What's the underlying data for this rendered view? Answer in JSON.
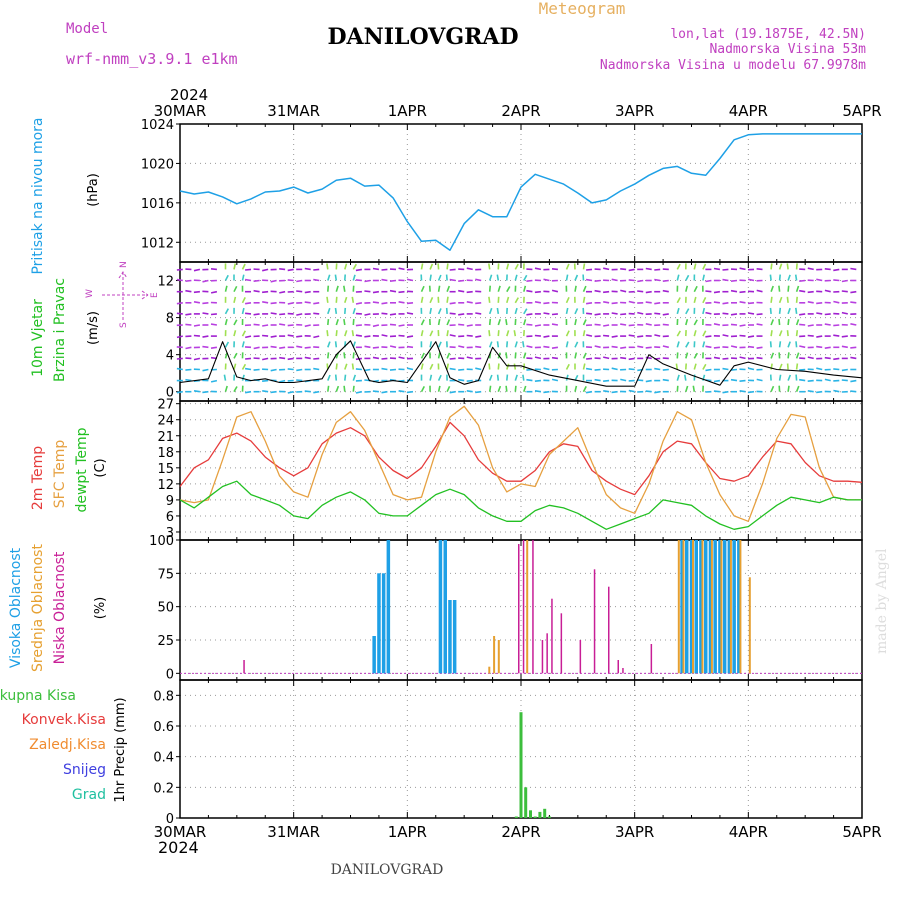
{
  "header": {
    "model_label": "Model",
    "model_name": "wrf-nmm_v3.9.1 e1km",
    "location_title": "DANILOVGRAD",
    "product": "Meteogram",
    "lonlat": "lon,lat (19.1875E, 42.5N)",
    "elevation": "Nadmorska Visina 53m",
    "model_elevation": "Nadmorska Visina u modelu 67.9978m",
    "footer_title": "DANILOVGRAD",
    "credit": "made by Angel",
    "year_top": "2024",
    "year_bottom": "2024"
  },
  "colors": {
    "pressure": "#1ea0e6",
    "temp2m": "#e63c3c",
    "sfc_temp": "#e6a040",
    "dewpoint": "#22c022",
    "high_cloud": "#1ea0e6",
    "mid_cloud": "#e6a030",
    "low_cloud": "#c81e96",
    "total_precip": "#3cbe3c",
    "conv_precip": "#e63c3c",
    "freezing": "#f08c30",
    "snow": "#4040e0",
    "grad": "#20c0a0",
    "wind_label": "#22c022",
    "axis_purple": "#c040c0"
  },
  "chart_data": [
    {
      "type": "line",
      "name_label": "Pritisak na nivou mora",
      "ylabel": "(hPa)",
      "ylim": [
        1010,
        1024
      ],
      "yticks": [
        1012,
        1016,
        1020,
        1024
      ],
      "x_days": [
        "30MAR",
        "31MAR",
        "1APR",
        "2APR",
        "3APR",
        "4APR",
        "5APR"
      ],
      "x_range_hours": [
        0,
        144
      ],
      "series": [
        {
          "name": "pressure",
          "x": [
            0,
            3,
            6,
            9,
            12,
            15,
            18,
            21,
            24,
            27,
            30,
            33,
            36,
            39,
            42,
            45,
            48,
            51,
            54,
            57,
            60,
            63,
            66,
            69,
            72,
            75,
            78,
            81,
            84,
            87,
            90,
            93,
            96,
            99,
            102,
            105,
            108,
            111,
            114,
            117,
            120,
            123,
            126,
            129,
            132,
            135,
            138,
            141,
            144
          ],
          "values": [
            1017.2,
            1016.9,
            1017.1,
            1016.6,
            1015.9,
            1016.4,
            1017.1,
            1017.2,
            1017.6,
            1017.0,
            1017.4,
            1018.3,
            1018.5,
            1017.7,
            1017.8,
            1016.5,
            1014.1,
            1012.1,
            1012.2,
            1011.2,
            1013.9,
            1015.3,
            1014.6,
            1014.6,
            1017.6,
            1018.9,
            1018.4,
            1017.9,
            1017.0,
            1016.0,
            1016.3,
            1017.2,
            1017.9,
            1018.8,
            1019.5,
            1019.7,
            1019.0,
            1018.8,
            1020.5,
            1022.4,
            1022.9,
            1023.0,
            1023.0,
            1023.0,
            1023.0,
            1023.0,
            1023.0,
            1023.0,
            1023.0
          ]
        }
      ]
    },
    {
      "type": "line",
      "name_label_1": "10m Vjetar",
      "name_label_2": "Brzina i Pravac",
      "ylabel": "(m/s)",
      "ylim": [
        -1,
        14
      ],
      "yticks": [
        0,
        4,
        8,
        12
      ],
      "compass": {
        "n": "N",
        "w": "W",
        "e": "E",
        "s": "S"
      },
      "series": [
        {
          "name": "wind_speed",
          "x": [
            0,
            6,
            9,
            12,
            15,
            18,
            21,
            24,
            30,
            33,
            36,
            40,
            42,
            45,
            48,
            54,
            57,
            60,
            63,
            66,
            69,
            72,
            78,
            84,
            90,
            96,
            99,
            102,
            108,
            114,
            117,
            120,
            126,
            132,
            138,
            144
          ],
          "values": [
            1.0,
            1.4,
            5.4,
            1.6,
            1.2,
            1.4,
            1.0,
            1.0,
            1.4,
            4.0,
            5.5,
            1.2,
            1.0,
            1.2,
            1.0,
            5.4,
            1.5,
            0.8,
            1.2,
            4.8,
            2.8,
            2.8,
            1.8,
            1.2,
            0.6,
            0.6,
            4.0,
            3.0,
            1.8,
            0.7,
            2.8,
            3.2,
            2.4,
            2.2,
            1.8,
            1.5
          ]
        }
      ]
    },
    {
      "type": "line",
      "name_label_1": "2m Temp",
      "name_label_2": "SFC Temp",
      "name_label_3": "dewpt Temp",
      "ylabel": "(C)",
      "ylim": [
        1.5,
        27.5
      ],
      "yticks": [
        3,
        6,
        9,
        12,
        15,
        18,
        21,
        24,
        27
      ],
      "series": [
        {
          "name": "temp2m",
          "x": [
            0,
            3,
            6,
            9,
            12,
            15,
            18,
            21,
            24,
            27,
            30,
            33,
            36,
            39,
            42,
            45,
            48,
            51,
            54,
            57,
            60,
            63,
            66,
            69,
            72,
            75,
            78,
            81,
            84,
            87,
            90,
            93,
            96,
            99,
            102,
            105,
            108,
            111,
            114,
            117,
            120,
            123,
            126,
            129,
            132,
            135,
            138,
            141,
            144
          ],
          "values": [
            11.5,
            15.0,
            16.5,
            20.5,
            21.5,
            20.0,
            17.0,
            15.0,
            13.5,
            15.0,
            19.5,
            21.5,
            22.5,
            21.0,
            17.0,
            14.5,
            13.0,
            15.0,
            19.0,
            23.5,
            21.0,
            16.5,
            14.0,
            12.5,
            12.5,
            14.5,
            18.0,
            19.5,
            19.0,
            14.5,
            12.5,
            11.0,
            10.0,
            13.5,
            18.0,
            20.0,
            19.5,
            16.0,
            13.0,
            12.5,
            13.5,
            17.0,
            20.0,
            19.5,
            16.0,
            13.5,
            12.5,
            12.5,
            12.3
          ]
        },
        {
          "name": "sfc_temp",
          "x": [
            0,
            3,
            6,
            9,
            12,
            15,
            18,
            21,
            24,
            27,
            30,
            33,
            36,
            39,
            42,
            45,
            48,
            51,
            54,
            57,
            60,
            63,
            66,
            69,
            72,
            75,
            78,
            81,
            84,
            87,
            90,
            93,
            96,
            99,
            102,
            105,
            108,
            111,
            114,
            117,
            120,
            123,
            126,
            129,
            132,
            135,
            138,
            141,
            144
          ],
          "values": [
            9.0,
            8.5,
            9.0,
            16.5,
            24.5,
            25.5,
            20.0,
            13.5,
            10.5,
            9.5,
            17.5,
            23.5,
            25.5,
            22.0,
            16.0,
            10.0,
            9.0,
            9.5,
            18.0,
            24.5,
            26.5,
            23.0,
            15.0,
            10.5,
            12.0,
            11.5,
            17.5,
            20.0,
            22.5,
            16.0,
            10.0,
            7.5,
            6.5,
            12.0,
            20.0,
            25.5,
            24.0,
            16.0,
            10.0,
            6.0,
            5.0,
            12.0,
            20.5,
            25.0,
            24.5,
            15.0,
            9.5,
            9.0,
            9.0
          ]
        },
        {
          "name": "dewpoint",
          "x": [
            0,
            3,
            6,
            9,
            12,
            15,
            18,
            21,
            24,
            27,
            30,
            33,
            36,
            39,
            42,
            45,
            48,
            51,
            54,
            57,
            60,
            63,
            66,
            69,
            72,
            75,
            78,
            81,
            84,
            87,
            90,
            93,
            96,
            99,
            102,
            105,
            108,
            111,
            114,
            117,
            120,
            123,
            126,
            129,
            132,
            135,
            138,
            141,
            144
          ],
          "values": [
            9.0,
            7.5,
            9.5,
            11.5,
            12.5,
            10.0,
            9.0,
            8.0,
            6.0,
            5.5,
            8.0,
            9.5,
            10.5,
            9.0,
            6.5,
            6.0,
            6.0,
            8.0,
            10.0,
            11.0,
            10.0,
            7.5,
            6.0,
            5.0,
            5.0,
            7.0,
            8.0,
            7.5,
            6.5,
            5.0,
            3.5,
            4.5,
            5.5,
            6.5,
            9.0,
            8.5,
            8.0,
            6.0,
            4.5,
            3.5,
            4.0,
            6.0,
            8.0,
            9.5,
            9.0,
            8.5,
            9.5,
            9.0,
            9.0
          ]
        }
      ]
    },
    {
      "type": "bar",
      "name_label_1": "Visoka Oblacnost",
      "name_label_2": "Srednja Oblacnost",
      "name_label_3": "Niska Oblacnost",
      "ylabel": "(%)",
      "ylim": [
        -5,
        100
      ],
      "yticks": [
        0,
        25,
        50,
        75,
        100
      ],
      "series": [
        {
          "name": "high_cloud",
          "x": [
            41,
            42,
            43,
            44,
            55,
            56,
            57,
            58,
            106,
            107,
            108,
            109,
            110,
            111,
            112,
            113,
            114,
            115,
            116,
            117,
            118
          ],
          "values": [
            28,
            75,
            75,
            100,
            100,
            100,
            55,
            55,
            100,
            100,
            100,
            100,
            100,
            100,
            100,
            100,
            100,
            100,
            100,
            100,
            100
          ]
        },
        {
          "name": "mid_cloud",
          "x": [
            65,
            66,
            67,
            73,
            105,
            106,
            108,
            110,
            112,
            114,
            116,
            118,
            120
          ],
          "values": [
            5,
            28,
            25,
            100,
            100,
            100,
            100,
            100,
            100,
            100,
            100,
            100,
            72
          ]
        },
        {
          "name": "low_cloud",
          "x": [
            13,
            71,
            72,
            74,
            76,
            77,
            78,
            80,
            84,
            87,
            90,
            92,
            93,
            99
          ],
          "values": [
            10,
            97,
            100,
            100,
            25,
            30,
            56,
            45,
            25,
            78,
            65,
            10,
            4,
            22
          ]
        }
      ]
    },
    {
      "type": "bar",
      "name_label_1": "Ukupna Kisa",
      "name_label_2": "Konvek.Kisa",
      "name_label_3": "Zaledj.Kisa",
      "name_label_4": "Snijeg",
      "name_label_5": "Grad",
      "ylabel": "1hr Precip (mm)",
      "ylim": [
        0,
        0.9
      ],
      "yticks": [
        0,
        0.2,
        0.4,
        0.6,
        0.8
      ],
      "series": [
        {
          "name": "total_precip",
          "x": [
            71,
            72,
            73,
            74,
            75,
            76,
            77,
            78
          ],
          "values": [
            0.01,
            0.69,
            0.2,
            0.05,
            0.01,
            0.04,
            0.06,
            0.01
          ]
        }
      ]
    }
  ]
}
